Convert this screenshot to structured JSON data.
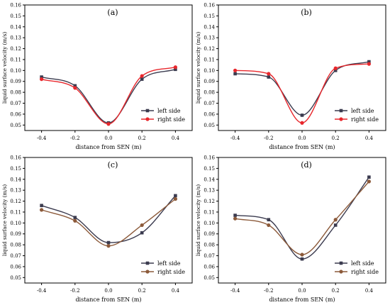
{
  "chart_data": [
    {
      "type": "line",
      "panel_label": "(a)",
      "xlabel": "distance from SEN (m)",
      "ylabel": "liquid surface velocity (m/s)",
      "x": [
        -0.4,
        -0.2,
        0.0,
        0.2,
        0.4
      ],
      "x_ticks": [
        "-0.4",
        "-0.2",
        "0.0",
        "0.2",
        "0.4"
      ],
      "xlim": [
        -0.5,
        0.5
      ],
      "ylim": [
        0.045,
        0.16
      ],
      "y_ticks": [
        "0.05",
        "0.06",
        "0.07",
        "0.08",
        "0.09",
        "0.10",
        "0.11",
        "0.12",
        "0.13",
        "0.14",
        "0.15",
        "0.16"
      ],
      "legend_position": "bottom-right",
      "series": [
        {
          "name": "left side",
          "color": "#3b3b4f",
          "marker": "square",
          "values": [
            0.094,
            0.086,
            0.052,
            0.092,
            0.101
          ]
        },
        {
          "name": "right side",
          "color": "#e8272c",
          "marker": "circle",
          "values": [
            0.092,
            0.084,
            0.051,
            0.095,
            0.103
          ]
        }
      ]
    },
    {
      "type": "line",
      "panel_label": "(b)",
      "xlabel": "distance from SEN (m)",
      "ylabel": "liquid surface velocity (m/s)",
      "x": [
        -0.4,
        -0.2,
        0.0,
        0.2,
        0.4
      ],
      "x_ticks": [
        "-0.4",
        "-0.2",
        "0.0",
        "0.2",
        "0.4"
      ],
      "xlim": [
        -0.5,
        0.5
      ],
      "ylim": [
        0.045,
        0.16
      ],
      "y_ticks": [
        "0.05",
        "0.06",
        "0.07",
        "0.08",
        "0.09",
        "0.10",
        "0.11",
        "0.12",
        "0.13",
        "0.14",
        "0.15",
        "0.16"
      ],
      "legend_position": "bottom-right",
      "series": [
        {
          "name": "left side",
          "color": "#3b3b4f",
          "marker": "square",
          "values": [
            0.097,
            0.094,
            0.059,
            0.1,
            0.108
          ]
        },
        {
          "name": "right side",
          "color": "#e8272c",
          "marker": "circle",
          "values": [
            0.1,
            0.097,
            0.052,
            0.102,
            0.106
          ]
        }
      ]
    },
    {
      "type": "line",
      "panel_label": "(c)",
      "xlabel": "distance from SEN (m)",
      "ylabel": "liquid surface velocity (m/s)",
      "x": [
        -0.4,
        -0.2,
        0.0,
        0.2,
        0.4
      ],
      "x_ticks": [
        "-0.4",
        "-0.2",
        "0.0",
        "0.2",
        "0.4"
      ],
      "xlim": [
        -0.5,
        0.5
      ],
      "ylim": [
        0.045,
        0.16
      ],
      "y_ticks": [
        "0.05",
        "0.06",
        "0.07",
        "0.08",
        "0.09",
        "0.10",
        "0.11",
        "0.12",
        "0.13",
        "0.14",
        "0.15",
        "0.16"
      ],
      "legend_position": "bottom-right",
      "series": [
        {
          "name": "left side",
          "color": "#3b3b4f",
          "marker": "square",
          "values": [
            0.116,
            0.105,
            0.082,
            0.091,
            0.125
          ]
        },
        {
          "name": "right side",
          "color": "#8c5a3a",
          "marker": "circle",
          "values": [
            0.112,
            0.102,
            0.079,
            0.098,
            0.122
          ]
        }
      ]
    },
    {
      "type": "line",
      "panel_label": "(d)",
      "xlabel": "distance from SEN (m)",
      "ylabel": "liquid surface velocity (m/s)",
      "x": [
        -0.4,
        -0.2,
        0.0,
        0.2,
        0.4
      ],
      "x_ticks": [
        "-0.4",
        "-0.2",
        "0.0",
        "0.2",
        "0.4"
      ],
      "xlim": [
        -0.5,
        0.5
      ],
      "ylim": [
        0.045,
        0.16
      ],
      "y_ticks": [
        "0.05",
        "0.06",
        "0.07",
        "0.08",
        "0.09",
        "0.10",
        "0.11",
        "0.12",
        "0.13",
        "0.14",
        "0.15",
        "0.16"
      ],
      "legend_position": "bottom-right",
      "series": [
        {
          "name": "left side",
          "color": "#3b3b4f",
          "marker": "square",
          "values": [
            0.107,
            0.103,
            0.067,
            0.098,
            0.142
          ]
        },
        {
          "name": "right side",
          "color": "#8c5a3a",
          "marker": "circle",
          "values": [
            0.104,
            0.098,
            0.071,
            0.103,
            0.138
          ]
        }
      ]
    }
  ]
}
